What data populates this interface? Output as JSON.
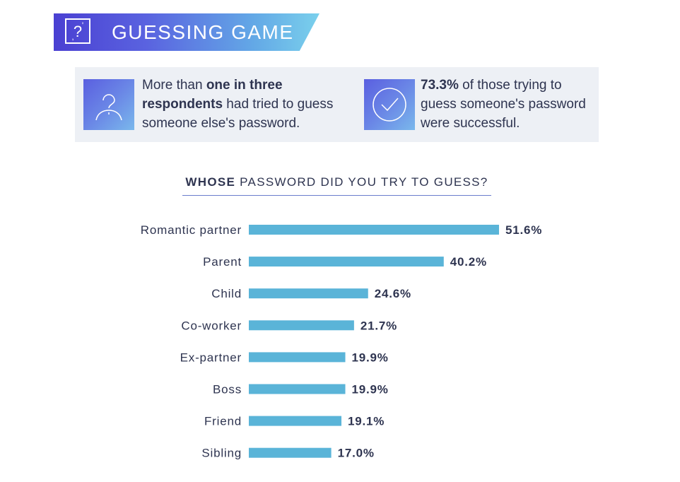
{
  "header": {
    "title": "GUESSING GAME",
    "icon": "question-card-icon",
    "gradient": [
      "#4a40d2",
      "#7ad0ec"
    ]
  },
  "facts": [
    {
      "icon": "user-question-icon",
      "text_plain_1": "More than ",
      "text_bold": "one in three respondents",
      "text_plain_2": " had tried to guess someone else's password."
    },
    {
      "icon": "checkmark-circle-icon",
      "text_bold": "73.3%",
      "text_plain_2": " of those trying to guess someone's password were successful."
    }
  ],
  "chart_data": {
    "type": "bar",
    "orientation": "horizontal",
    "title_bold": "WHOSE",
    "title_rest": " PASSWORD DID YOU TRY TO GUESS?",
    "categories": [
      "Romantic partner",
      "Parent",
      "Child",
      "Co-worker",
      "Ex-partner",
      "Boss",
      "Friend",
      "Sibling"
    ],
    "values": [
      51.6,
      40.2,
      24.6,
      21.7,
      19.9,
      19.9,
      19.1,
      17.0
    ],
    "value_labels": [
      "51.6%",
      "40.2%",
      "24.6%",
      "21.7%",
      "19.9%",
      "19.9%",
      "19.1%",
      "17.0%"
    ],
    "unit": "%",
    "bar_color": "#5ab4d8",
    "grid": false,
    "legend": "none"
  }
}
